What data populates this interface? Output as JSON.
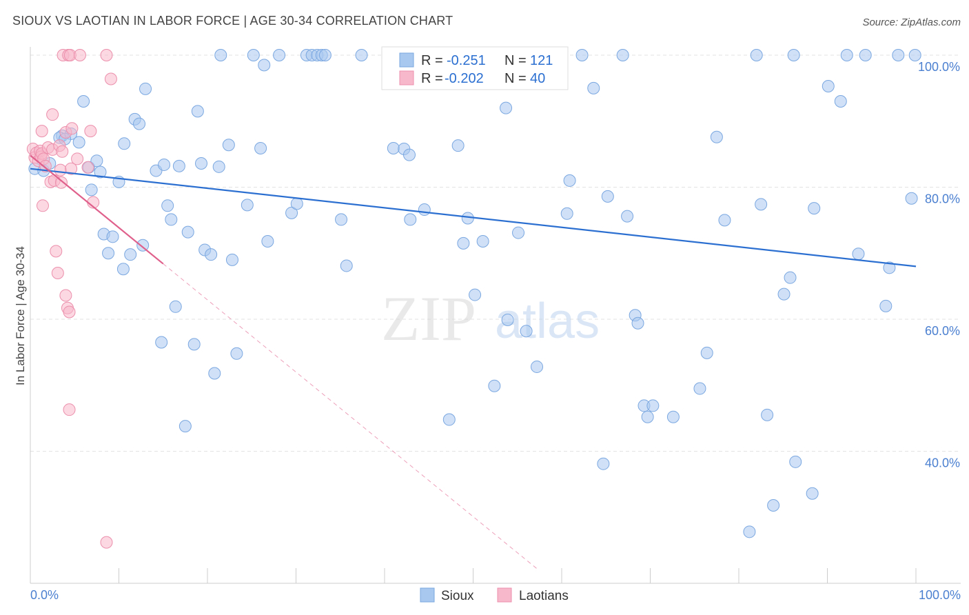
{
  "header": {
    "title": "SIOUX VS LAOTIAN IN LABOR FORCE | AGE 30-34 CORRELATION CHART",
    "source": "Source: ZipAtlas.com"
  },
  "watermark": {
    "zip": "ZIP",
    "atlas": "atlas"
  },
  "chart_data": {
    "type": "scatter",
    "title": "SIOUX VS LAOTIAN IN LABOR FORCE | AGE 30-34 CORRELATION CHART",
    "xlabel": "",
    "ylabel": "In Labor Force | Age 30-34",
    "xlim": [
      0,
      100
    ],
    "ylim": [
      20,
      100
    ],
    "x_tick_labels": [
      "0.0%",
      "100.0%"
    ],
    "y_ticks": [
      40,
      60,
      80,
      100
    ],
    "y_tick_labels": [
      "40.0%",
      "60.0%",
      "80.0%",
      "100.0%"
    ],
    "grid": true,
    "legend_position": "top-center",
    "series": [
      {
        "name": "Sioux",
        "color": "#a9c8f0",
        "edge_color": "#7aa7e0",
        "line_color": "#2b6fd1",
        "stats": {
          "r_label": "R =",
          "r": "-0.251",
          "n_label": "N =",
          "n": "121"
        },
        "trend": {
          "x": [
            0,
            100
          ],
          "y": [
            82.8,
            68.0
          ],
          "dashed_extension": false
        },
        "points": [
          [
            0.5,
            82.8
          ],
          [
            1.5,
            82.5
          ],
          [
            2.2,
            83.6
          ],
          [
            3.6,
            87.8
          ],
          [
            3.3,
            87.5
          ],
          [
            4.6,
            88.1
          ],
          [
            3.9,
            87.3
          ],
          [
            5.5,
            86.8
          ],
          [
            6.0,
            93.0
          ],
          [
            6.6,
            83.0
          ],
          [
            6.9,
            79.6
          ],
          [
            7.5,
            84.0
          ],
          [
            7.9,
            82.3
          ],
          [
            8.3,
            72.9
          ],
          [
            8.8,
            70.0
          ],
          [
            9.3,
            72.5
          ],
          [
            10.0,
            80.8
          ],
          [
            10.5,
            67.6
          ],
          [
            10.6,
            86.6
          ],
          [
            11.3,
            69.8
          ],
          [
            11.8,
            90.3
          ],
          [
            12.3,
            89.6
          ],
          [
            12.7,
            71.2
          ],
          [
            13.0,
            94.9
          ],
          [
            14.2,
            82.5
          ],
          [
            14.8,
            56.5
          ],
          [
            15.1,
            83.4
          ],
          [
            15.5,
            77.2
          ],
          [
            15.9,
            75.1
          ],
          [
            16.4,
            61.9
          ],
          [
            16.8,
            83.2
          ],
          [
            17.5,
            43.8
          ],
          [
            17.8,
            73.2
          ],
          [
            18.5,
            56.2
          ],
          [
            18.9,
            91.5
          ],
          [
            19.3,
            83.6
          ],
          [
            19.7,
            70.5
          ],
          [
            20.4,
            69.8
          ],
          [
            20.8,
            51.8
          ],
          [
            21.3,
            83.1
          ],
          [
            21.5,
            100
          ],
          [
            22.4,
            86.4
          ],
          [
            22.8,
            69.0
          ],
          [
            23.3,
            54.8
          ],
          [
            24.5,
            77.3
          ],
          [
            25.2,
            100
          ],
          [
            26.0,
            85.9
          ],
          [
            26.4,
            98.5
          ],
          [
            26.8,
            71.8
          ],
          [
            28.1,
            100
          ],
          [
            29.5,
            76.1
          ],
          [
            30.1,
            77.5
          ],
          [
            31.2,
            100
          ],
          [
            31.8,
            100
          ],
          [
            32.4,
            100
          ],
          [
            32.9,
            100
          ],
          [
            33.3,
            100
          ],
          [
            35.1,
            75.1
          ],
          [
            35.7,
            68.1
          ],
          [
            37.4,
            100
          ],
          [
            41.0,
            85.9
          ],
          [
            41.5,
            100
          ],
          [
            42.2,
            85.8
          ],
          [
            42.8,
            84.9
          ],
          [
            42.9,
            75.1
          ],
          [
            44.5,
            76.6
          ],
          [
            47.3,
            44.8
          ],
          [
            48.0,
            100
          ],
          [
            48.3,
            86.3
          ],
          [
            48.9,
            71.5
          ],
          [
            49.4,
            75.3
          ],
          [
            50.2,
            63.7
          ],
          [
            51.1,
            71.8
          ],
          [
            52.4,
            49.9
          ],
          [
            53.7,
            92.0
          ],
          [
            53.9,
            59.9
          ],
          [
            55.1,
            73.1
          ],
          [
            56.0,
            58.2
          ],
          [
            57.2,
            52.8
          ],
          [
            59.0,
            100
          ],
          [
            60.6,
            76.0
          ],
          [
            60.9,
            81.0
          ],
          [
            62.3,
            100
          ],
          [
            63.6,
            95.0
          ],
          [
            64.7,
            38.1
          ],
          [
            65.2,
            78.6
          ],
          [
            66.9,
            100
          ],
          [
            67.4,
            75.6
          ],
          [
            68.3,
            60.6
          ],
          [
            68.6,
            59.4
          ],
          [
            69.3,
            46.9
          ],
          [
            69.7,
            45.2
          ],
          [
            70.3,
            46.9
          ],
          [
            72.6,
            45.2
          ],
          [
            75.6,
            49.5
          ],
          [
            76.4,
            54.9
          ],
          [
            77.5,
            87.6
          ],
          [
            78.4,
            75.0
          ],
          [
            81.2,
            27.8
          ],
          [
            82.0,
            100
          ],
          [
            82.5,
            77.4
          ],
          [
            83.2,
            45.5
          ],
          [
            83.9,
            31.8
          ],
          [
            85.1,
            63.8
          ],
          [
            85.8,
            66.3
          ],
          [
            86.2,
            100
          ],
          [
            86.4,
            38.4
          ],
          [
            88.3,
            33.6
          ],
          [
            88.5,
            76.8
          ],
          [
            90.1,
            95.3
          ],
          [
            91.5,
            93.0
          ],
          [
            92.2,
            100
          ],
          [
            93.5,
            69.9
          ],
          [
            94.3,
            100
          ],
          [
            96.6,
            62.0
          ],
          [
            97.0,
            67.8
          ],
          [
            98.0,
            100
          ],
          [
            99.5,
            78.3
          ],
          [
            99.9,
            100
          ]
        ]
      },
      {
        "name": "Laotians",
        "color": "#f7b8cb",
        "edge_color": "#ec8fac",
        "line_color": "#e0608c",
        "stats": {
          "r_label": "R =",
          "r": "-0.202",
          "n_label": "N =",
          "n": "40"
        },
        "trend": {
          "x": [
            0,
            15
          ],
          "y": [
            84.8,
            68.4
          ],
          "dashed_extension": true,
          "dashed_to": [
            57.4,
            22.0
          ]
        },
        "points": [
          [
            0.3,
            85.8
          ],
          [
            0.5,
            84.5
          ],
          [
            0.7,
            85.2
          ],
          [
            0.9,
            84.0
          ],
          [
            1.1,
            85.5
          ],
          [
            1.2,
            84.6
          ],
          [
            1.3,
            85.1
          ],
          [
            1.3,
            88.5
          ],
          [
            1.4,
            77.2
          ],
          [
            1.5,
            84.3
          ],
          [
            1.7,
            83.2
          ],
          [
            2.0,
            86.0
          ],
          [
            2.3,
            80.8
          ],
          [
            2.5,
            85.7
          ],
          [
            2.5,
            91.0
          ],
          [
            2.7,
            81.0
          ],
          [
            2.9,
            70.3
          ],
          [
            3.1,
            67.0
          ],
          [
            3.3,
            86.3
          ],
          [
            3.4,
            82.6
          ],
          [
            3.5,
            80.7
          ],
          [
            3.6,
            85.4
          ],
          [
            3.7,
            100
          ],
          [
            4.0,
            88.3
          ],
          [
            4.0,
            63.6
          ],
          [
            4.2,
            61.7
          ],
          [
            4.3,
            100
          ],
          [
            4.4,
            61.1
          ],
          [
            4.4,
            46.3
          ],
          [
            4.5,
            100
          ],
          [
            4.6,
            82.8
          ],
          [
            4.7,
            88.9
          ],
          [
            5.6,
            100
          ],
          [
            6.5,
            83.0
          ],
          [
            5.3,
            84.3
          ],
          [
            6.8,
            88.5
          ],
          [
            7.1,
            77.7
          ],
          [
            8.6,
            100
          ],
          [
            9.1,
            96.4
          ],
          [
            8.6,
            26.2
          ]
        ]
      }
    ]
  }
}
